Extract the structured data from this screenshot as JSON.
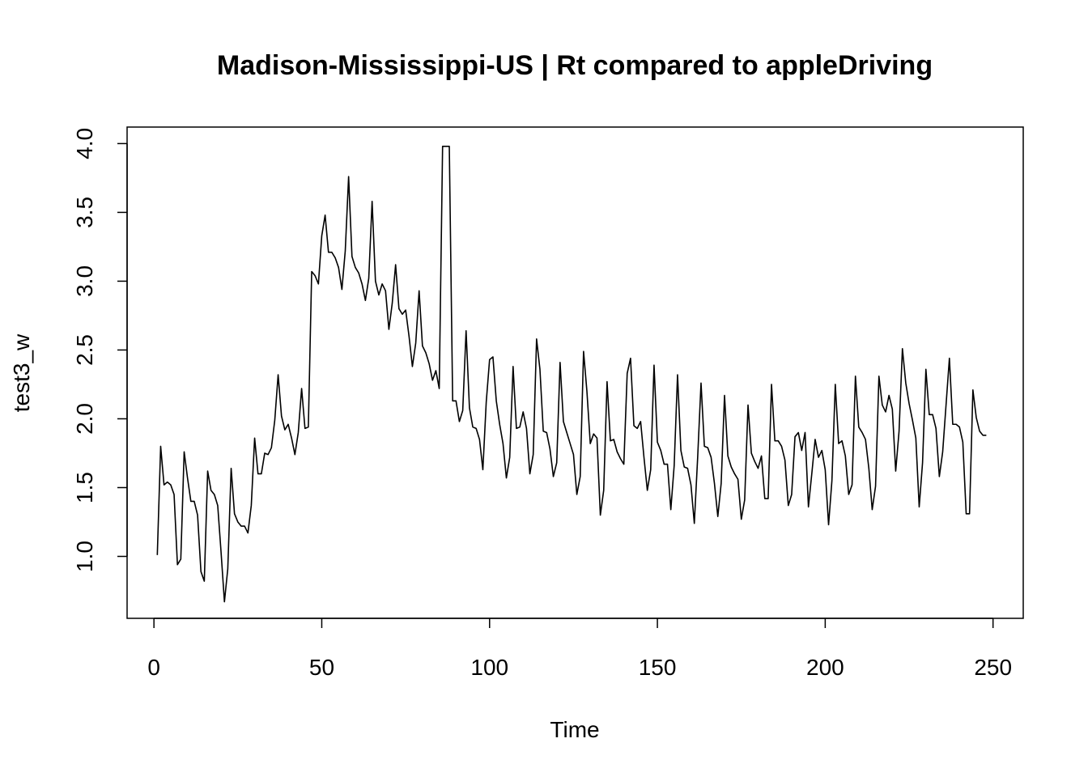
{
  "chart_data": {
    "type": "line",
    "title": "Madison-Mississippi-US | Rt compared to appleDriving",
    "xlabel": "Time",
    "ylabel": "test3_w",
    "xlim": [
      -8,
      259
    ],
    "ylim": [
      0.55,
      4.12
    ],
    "xticks": [
      0,
      50,
      100,
      150,
      200,
      250
    ],
    "yticks": [
      1.0,
      1.5,
      2.0,
      2.5,
      3.0,
      3.5,
      4.0
    ],
    "xtick_labels": [
      "0",
      "50",
      "100",
      "150",
      "200",
      "250"
    ],
    "ytick_labels": [
      "1.0",
      "1.5",
      "2.0",
      "2.5",
      "3.0",
      "3.5",
      "4.0"
    ],
    "grid": false,
    "legend": "none",
    "line_color": "#000000",
    "series": [
      {
        "x": [
          1,
          2,
          3,
          4,
          5,
          6,
          7,
          8,
          9,
          10,
          11,
          12,
          13,
          14,
          15,
          16,
          17,
          18,
          19,
          20,
          21,
          22,
          23,
          24,
          25,
          26,
          27,
          28,
          29,
          30,
          31,
          32,
          33,
          34,
          35,
          36,
          37,
          38,
          39,
          40,
          41,
          42,
          43,
          44,
          45,
          46,
          47,
          48,
          49,
          50,
          51,
          52,
          53,
          54,
          55,
          56,
          57,
          58,
          59,
          60,
          61,
          62,
          63,
          64,
          65,
          66,
          67,
          68,
          69,
          70,
          71,
          72,
          73,
          74,
          75,
          76,
          77,
          78,
          79,
          80,
          81,
          82,
          83,
          84,
          85,
          86,
          87,
          88,
          89,
          90,
          91,
          92,
          93,
          94,
          95,
          96,
          97,
          98,
          99,
          100,
          101,
          102,
          103,
          104,
          105,
          106,
          107,
          108,
          109,
          110,
          111,
          112,
          113,
          114,
          115,
          116,
          117,
          118,
          119,
          120,
          121,
          122,
          123,
          124,
          125,
          126,
          127,
          128,
          129,
          130,
          131,
          132,
          133,
          134,
          135,
          136,
          137,
          138,
          139,
          140,
          141,
          142,
          143,
          144,
          145,
          146,
          147,
          148,
          149,
          150,
          151,
          152,
          153,
          154,
          155,
          156,
          157,
          158,
          159,
          160,
          161,
          162,
          163,
          164,
          165,
          166,
          167,
          168,
          169,
          170,
          171,
          172,
          173,
          174,
          175,
          176,
          177,
          178,
          179,
          180,
          181,
          182,
          183,
          184,
          185,
          186,
          187,
          188,
          189,
          190,
          191,
          192,
          193,
          194,
          195,
          196,
          197,
          198,
          199,
          200,
          201,
          202,
          203,
          204,
          205,
          206,
          207,
          208,
          209,
          210,
          211,
          212,
          213,
          214,
          215,
          216,
          217,
          218,
          219,
          220,
          221,
          222,
          223,
          224,
          225,
          226,
          227,
          228,
          229,
          230,
          231,
          232,
          233,
          234,
          235,
          236,
          237,
          238,
          239,
          240,
          241,
          242,
          243,
          244,
          245,
          246,
          247,
          248
        ],
        "values": [
          1.01,
          1.8,
          1.52,
          1.54,
          1.52,
          1.45,
          0.94,
          0.98,
          1.76,
          1.57,
          1.4,
          1.4,
          1.3,
          0.89,
          0.82,
          1.62,
          1.48,
          1.45,
          1.37,
          1.03,
          0.67,
          0.91,
          1.64,
          1.31,
          1.25,
          1.22,
          1.22,
          1.17,
          1.37,
          1.86,
          1.6,
          1.6,
          1.75,
          1.74,
          1.79,
          1.99,
          2.32,
          2.02,
          1.92,
          1.96,
          1.86,
          1.74,
          1.9,
          2.22,
          1.93,
          1.94,
          3.07,
          3.04,
          2.98,
          3.33,
          3.48,
          3.21,
          3.21,
          3.17,
          3.1,
          2.94,
          3.22,
          3.76,
          3.18,
          3.1,
          3.06,
          2.98,
          2.86,
          3.02,
          3.58,
          3.0,
          2.9,
          2.98,
          2.93,
          2.65,
          2.84,
          3.12,
          2.8,
          2.76,
          2.79,
          2.6,
          2.38,
          2.55,
          2.93,
          2.53,
          2.48,
          2.4,
          2.28,
          2.35,
          2.22,
          3.98,
          3.98,
          3.98,
          2.13,
          2.13,
          1.98,
          2.06,
          2.64,
          2.08,
          1.94,
          1.93,
          1.85,
          1.63,
          2.12,
          2.43,
          2.45,
          2.13,
          1.96,
          1.82,
          1.57,
          1.72,
          2.38,
          1.93,
          1.94,
          2.05,
          1.93,
          1.6,
          1.74,
          2.58,
          2.36,
          1.91,
          1.9,
          1.78,
          1.58,
          1.68,
          2.41,
          1.98,
          1.9,
          1.82,
          1.74,
          1.45,
          1.58,
          2.49,
          2.2,
          1.82,
          1.89,
          1.86,
          1.3,
          1.48,
          2.27,
          1.84,
          1.85,
          1.76,
          1.71,
          1.67,
          2.33,
          2.44,
          1.95,
          1.93,
          1.98,
          1.72,
          1.48,
          1.63,
          2.39,
          1.83,
          1.77,
          1.67,
          1.67,
          1.34,
          1.66,
          2.32,
          1.77,
          1.65,
          1.64,
          1.52,
          1.24,
          1.72,
          2.26,
          1.8,
          1.79,
          1.72,
          1.53,
          1.29,
          1.53,
          2.17,
          1.73,
          1.65,
          1.6,
          1.56,
          1.27,
          1.41,
          2.1,
          1.75,
          1.69,
          1.64,
          1.73,
          1.42,
          1.42,
          2.25,
          1.84,
          1.84,
          1.8,
          1.7,
          1.37,
          1.45,
          1.87,
          1.9,
          1.77,
          1.9,
          1.36,
          1.6,
          1.85,
          1.72,
          1.77,
          1.63,
          1.23,
          1.55,
          2.25,
          1.82,
          1.84,
          1.73,
          1.45,
          1.52,
          2.31,
          1.94,
          1.9,
          1.85,
          1.64,
          1.34,
          1.51,
          2.31,
          2.1,
          2.05,
          2.17,
          2.07,
          1.62,
          1.91,
          2.51,
          2.26,
          2.11,
          1.99,
          1.86,
          1.36,
          1.68,
          2.36,
          2.03,
          2.03,
          1.93,
          1.58,
          1.76,
          2.1,
          2.44,
          1.96,
          1.96,
          1.94,
          1.83,
          1.31,
          1.31,
          2.21,
          2.01,
          1.91,
          1.88,
          1.88
        ]
      }
    ]
  }
}
